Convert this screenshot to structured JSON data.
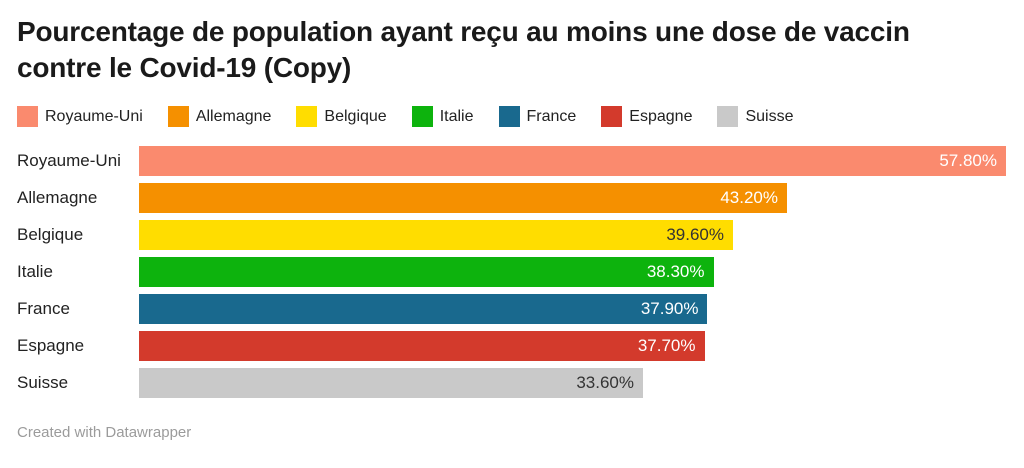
{
  "title": "Pourcentage de population ayant reçu au moins une dose de vaccin contre le Covid-19 (Copy)",
  "footer": {
    "credit": "Created with Datawrapper"
  },
  "legend": [
    {
      "label": "Royaume-Uni",
      "color": "#fa8a6e"
    },
    {
      "label": "Allemagne",
      "color": "#f59000"
    },
    {
      "label": "Belgique",
      "color": "#ffdd00"
    },
    {
      "label": "Italie",
      "color": "#0db30d"
    },
    {
      "label": "France",
      "color": "#19698e"
    },
    {
      "label": "Espagne",
      "color": "#d33a2c"
    },
    {
      "label": "Suisse",
      "color": "#c9c9c9"
    }
  ],
  "chart_data": {
    "type": "bar",
    "orientation": "horizontal",
    "title": "Pourcentage de population ayant reçu au moins une dose de vaccin contre le Covid-19 (Copy)",
    "xlabel": "",
    "ylabel": "",
    "xlim": [
      0,
      57.8
    ],
    "grid": false,
    "legend_position": "top",
    "categories": [
      "Royaume-Uni",
      "Allemagne",
      "Belgique",
      "Italie",
      "France",
      "Espagne",
      "Suisse"
    ],
    "values": [
      57.8,
      43.2,
      39.6,
      38.3,
      37.9,
      37.7,
      33.6
    ],
    "value_labels": [
      "57.80%",
      "43.20%",
      "39.60%",
      "38.30%",
      "37.90%",
      "37.70%",
      "33.60%"
    ],
    "bar_colors": [
      "#fa8a6e",
      "#f59000",
      "#ffdd00",
      "#0db30d",
      "#19698e",
      "#d33a2c",
      "#c9c9c9"
    ],
    "value_label_colors": [
      "#ffffff",
      "#ffffff",
      "#333333",
      "#ffffff",
      "#ffffff",
      "#ffffff",
      "#333333"
    ]
  }
}
